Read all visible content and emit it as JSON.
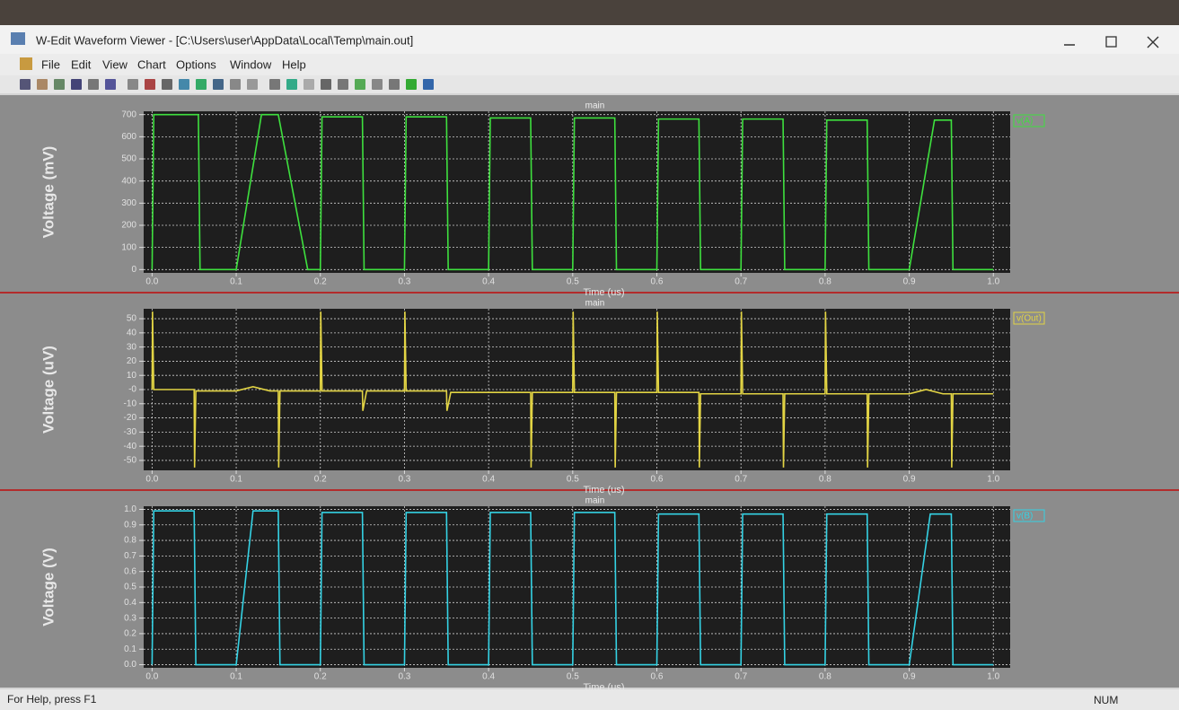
{
  "window": {
    "title": "W-Edit Waveform Viewer - [C:\\Users\\user\\AppData\\Local\\Temp\\main.out]",
    "menu": [
      "File",
      "Edit",
      "View",
      "Chart",
      "Options",
      "Window",
      "Help"
    ],
    "status": "For Help, press F1",
    "status_right": "NUM"
  },
  "chart_data": [
    {
      "type": "line",
      "title": "main",
      "x_label": "Time (us)",
      "y_label": "Voltage (mV)",
      "x": [
        0,
        0.002,
        0.055,
        0.057,
        0.1,
        0.13,
        0.15,
        0.185,
        0.2,
        0.202,
        0.25,
        0.252,
        0.3,
        0.302,
        0.35,
        0.352,
        0.4,
        0.402,
        0.45,
        0.452,
        0.5,
        0.502,
        0.55,
        0.552,
        0.6,
        0.602,
        0.65,
        0.652,
        0.7,
        0.702,
        0.75,
        0.752,
        0.8,
        0.802,
        0.85,
        0.852,
        0.9,
        0.93,
        0.95,
        0.952,
        1.0
      ],
      "series": [
        {
          "name": "v(A)",
          "color": "#3ee03e",
          "values": [
            0,
            700,
            700,
            0,
            0,
            700,
            700,
            0,
            0,
            690,
            690,
            0,
            0,
            690,
            690,
            0,
            0,
            685,
            685,
            0,
            0,
            685,
            685,
            0,
            0,
            680,
            680,
            0,
            0,
            680,
            680,
            0,
            0,
            675,
            675,
            0,
            0,
            675,
            675,
            0,
            0
          ]
        }
      ],
      "xlim": [
        -0.01,
        1.02
      ],
      "xticks": [
        {
          "value": 0,
          "label": "0.0"
        },
        0.1,
        0.2,
        0.3,
        0.4,
        0.5,
        0.6,
        0.7,
        0.8,
        0.9,
        {
          "value": 1,
          "label": "1.0"
        }
      ],
      "ylim": [
        -15,
        715
      ],
      "yticks": [
        0,
        100,
        200,
        300,
        400,
        500,
        600,
        700
      ],
      "grid": true
    },
    {
      "type": "line",
      "title": "main",
      "x_label": "Time (us)",
      "y_label": "Voltage (uV)",
      "x": [
        0,
        0.0005,
        0.002,
        0.05,
        0.0505,
        0.052,
        0.1,
        0.12,
        0.14,
        0.15,
        0.1505,
        0.152,
        0.2,
        0.2005,
        0.202,
        0.25,
        0.2505,
        0.255,
        0.3,
        0.3005,
        0.302,
        0.35,
        0.3505,
        0.355,
        0.45,
        0.4505,
        0.452,
        0.5,
        0.5005,
        0.502,
        0.55,
        0.5505,
        0.552,
        0.6,
        0.6005,
        0.602,
        0.65,
        0.6505,
        0.652,
        0.7,
        0.7005,
        0.702,
        0.75,
        0.7505,
        0.752,
        0.8,
        0.8005,
        0.802,
        0.85,
        0.8505,
        0.852,
        0.9,
        0.92,
        0.94,
        0.95,
        0.9505,
        0.952,
        1.0
      ],
      "series": [
        {
          "name": "v(Out)",
          "color": "#e2d444",
          "values": [
            0,
            55,
            0,
            0,
            -55,
            -1,
            -1,
            2,
            -1,
            -1,
            -55,
            -1,
            -1,
            55,
            -1,
            -1,
            -15,
            -1,
            -1,
            55,
            -1,
            -1,
            -15,
            -2,
            -2,
            -55,
            -2,
            -2,
            55,
            -2,
            -2,
            -55,
            -2,
            -2,
            55,
            -2,
            -2,
            -55,
            -3,
            -3,
            55,
            -3,
            -3,
            -55,
            -3,
            -3,
            55,
            -3,
            -3,
            -55,
            -3,
            -3,
            0,
            -3,
            -3,
            -55,
            -3,
            -3
          ]
        }
      ],
      "xlim": [
        -0.01,
        1.02
      ],
      "xticks": [
        {
          "value": 0,
          "label": "0.0"
        },
        0.1,
        0.2,
        0.3,
        0.4,
        0.5,
        0.6,
        0.7,
        0.8,
        0.9,
        {
          "value": 1,
          "label": "1.0"
        }
      ],
      "ylim": [
        -57,
        57
      ],
      "yticks": [
        -50,
        -40,
        -30,
        -20,
        -10,
        {
          "value": 0,
          "label": "-0"
        },
        10,
        20,
        30,
        40,
        50
      ],
      "grid": true
    },
    {
      "type": "line",
      "title": "main",
      "x_label": "Time (us)",
      "y_label": "Voltage (V)",
      "x": [
        0,
        0.002,
        0.05,
        0.052,
        0.1,
        0.12,
        0.15,
        0.152,
        0.2,
        0.202,
        0.25,
        0.252,
        0.3,
        0.302,
        0.35,
        0.352,
        0.4,
        0.402,
        0.45,
        0.452,
        0.5,
        0.502,
        0.55,
        0.552,
        0.6,
        0.602,
        0.65,
        0.652,
        0.7,
        0.702,
        0.75,
        0.752,
        0.8,
        0.802,
        0.85,
        0.852,
        0.9,
        0.925,
        0.95,
        0.952,
        1.0
      ],
      "series": [
        {
          "name": "v(B)",
          "color": "#34d2e4",
          "values": [
            0,
            0.99,
            0.99,
            0,
            0,
            0.99,
            0.99,
            0,
            0,
            0.98,
            0.98,
            0,
            0,
            0.98,
            0.98,
            0,
            0,
            0.98,
            0.98,
            0,
            0,
            0.98,
            0.98,
            0,
            0,
            0.97,
            0.97,
            0,
            0,
            0.97,
            0.97,
            0,
            0,
            0.97,
            0.97,
            0,
            0,
            0.97,
            0.97,
            0,
            0
          ]
        }
      ],
      "xlim": [
        -0.01,
        1.02
      ],
      "xticks": [
        {
          "value": 0,
          "label": "0.0"
        },
        0.1,
        0.2,
        0.3,
        0.4,
        0.5,
        0.6,
        0.7,
        0.8,
        0.9,
        {
          "value": 1,
          "label": "1.0"
        }
      ],
      "ylim": [
        -0.02,
        1.02
      ],
      "yticks": [
        {
          "value": 0,
          "label": "0.0"
        },
        0.1,
        0.2,
        0.3,
        0.4,
        0.5,
        0.6,
        0.7,
        0.8,
        0.9,
        {
          "value": 1,
          "label": "1.0"
        }
      ],
      "grid": true
    }
  ]
}
